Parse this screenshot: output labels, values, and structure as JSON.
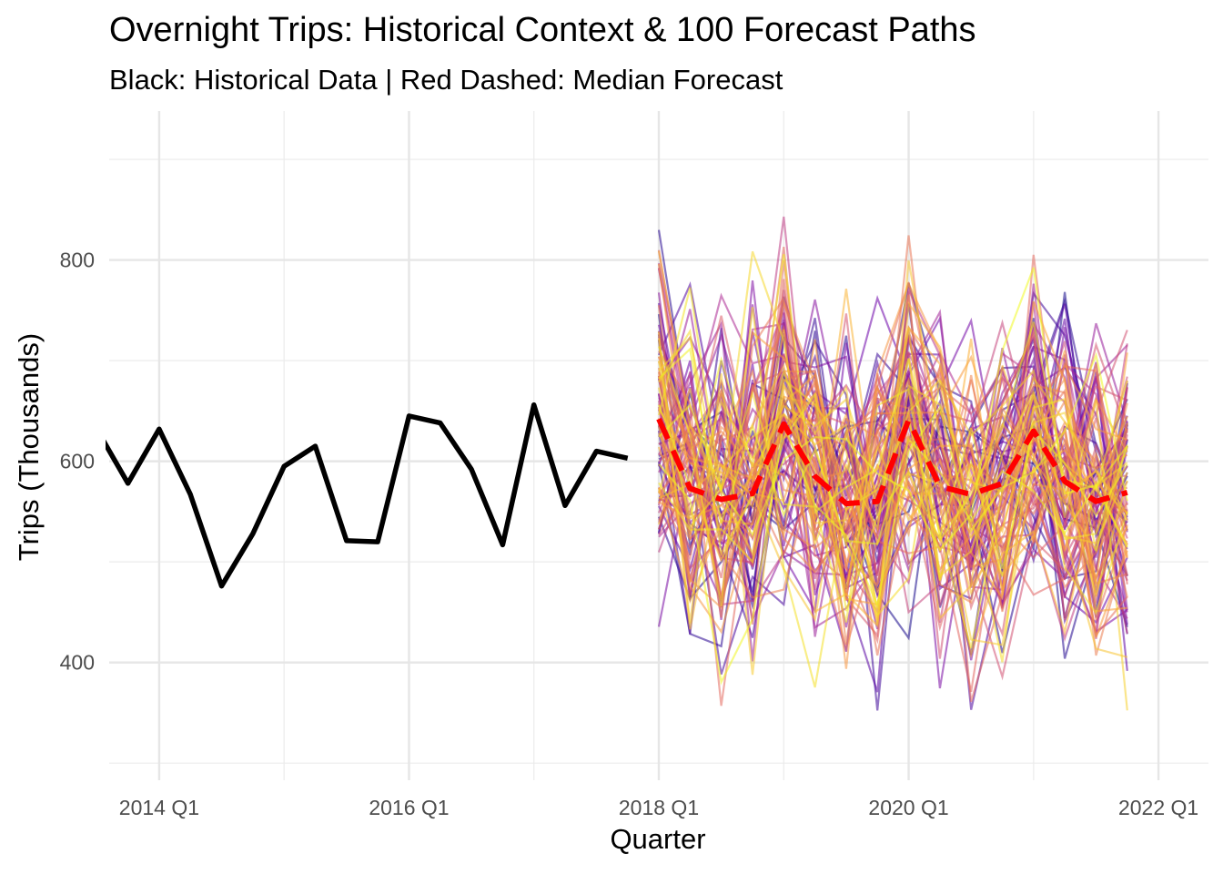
{
  "chart_data": {
    "type": "line",
    "title": "Overnight Trips: Historical Context & 100 Forecast Paths",
    "subtitle": "Black: Historical Data | Red Dashed: Median Forecast",
    "xlabel": "Quarter",
    "ylabel": "Trips (Thousands)",
    "x_range": [
      2013.6,
      2022.4
    ],
    "y_range": [
      283,
      948
    ],
    "x_ticks": [
      {
        "value": 2014,
        "label": "2014 Q1"
      },
      {
        "value": 2016,
        "label": "2016 Q1"
      },
      {
        "value": 2018,
        "label": "2018 Q1"
      },
      {
        "value": 2020,
        "label": "2020 Q1"
      },
      {
        "value": 2022,
        "label": "2022 Q1"
      }
    ],
    "x_minor": [
      2015,
      2017,
      2019,
      2021
    ],
    "y_ticks": [
      {
        "value": 400,
        "label": "400"
      },
      {
        "value": 600,
        "label": "600"
      },
      {
        "value": 800,
        "label": "800"
      }
    ],
    "y_minor": [
      300,
      500,
      700,
      900
    ],
    "grid": true,
    "legend": "none",
    "series": [
      {
        "role": "historical",
        "color": "#000000",
        "x": [
          2013.5,
          2013.75,
          2014.0,
          2014.25,
          2014.5,
          2014.75,
          2015.0,
          2015.25,
          2015.5,
          2015.75,
          2016.0,
          2016.25,
          2016.5,
          2016.75,
          2017.0,
          2017.25,
          2017.5,
          2017.75
        ],
        "y": [
          632,
          578,
          632,
          567,
          476,
          528,
          595,
          615,
          521,
          520,
          645,
          638,
          592,
          517,
          656,
          556,
          610,
          603
        ]
      },
      {
        "role": "median-forecast",
        "color": "#ff0000",
        "dashed": true,
        "x": [
          2018.0,
          2018.25,
          2018.5,
          2018.75,
          2019.0,
          2019.25,
          2019.5,
          2019.75,
          2020.0,
          2020.25,
          2020.5,
          2020.75,
          2021.0,
          2021.25,
          2021.5,
          2021.75
        ],
        "y": [
          642,
          573,
          562,
          568,
          637,
          585,
          558,
          560,
          641,
          575,
          567,
          578,
          630,
          580,
          560,
          569
        ]
      }
    ],
    "forecast_paths": {
      "count": 100,
      "x": [
        2018.0,
        2018.25,
        2018.5,
        2018.75,
        2019.0,
        2019.25,
        2019.5,
        2019.75,
        2020.0,
        2020.25,
        2020.5,
        2020.75,
        2021.0,
        2021.25,
        2021.5,
        2021.75
      ],
      "center": [
        642,
        573,
        562,
        568,
        637,
        585,
        558,
        560,
        641,
        575,
        567,
        578,
        630,
        580,
        560,
        569
      ],
      "spread": 82,
      "y_min": 304,
      "y_max": 930,
      "palette": [
        "#0d0887",
        "#6a00a8",
        "#b12a90",
        "#e16462",
        "#fca636",
        "#f0f921"
      ],
      "opacity": 0.55
    }
  }
}
